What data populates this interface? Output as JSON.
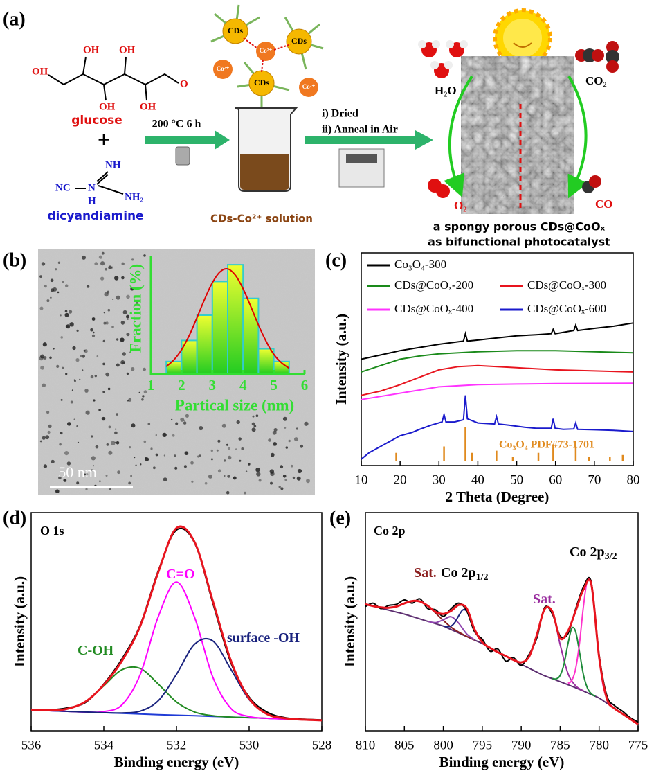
{
  "panel_labels": [
    "(a)",
    "(b)",
    "(c)",
    "(d)",
    "(e)"
  ],
  "scheme": {
    "glucose_atoms": [
      "OH",
      "OH",
      "OH",
      "OH",
      "OH",
      "O"
    ],
    "glucose": "glucose",
    "plus": "+",
    "dicyandiamine_atoms": [
      "NH",
      "NC",
      "N",
      "H",
      "NH₂"
    ],
    "dicyandiamine": "dicyandiamine",
    "step1": "200 °C 6 h",
    "cds": [
      "CDs",
      "CDs",
      "CDs"
    ],
    "ions": [
      "Co²⁺",
      "Co²⁺",
      "Co²⁺"
    ],
    "solution": "CDs-Co²⁺ solution",
    "step2": [
      "i) Dried",
      "ii) Anneal in Air"
    ],
    "molecules": [
      "H₂O",
      "CO₂",
      "O₂",
      "CO"
    ],
    "caption": [
      "a spongy porous CDs@CoOₓ",
      "as bifunctional photocatalyst"
    ]
  },
  "tem": {
    "scale_bar": "50 nm"
  },
  "chart_data": [
    {
      "type": "histogram",
      "xlabel": "Partical size (nm)",
      "ylabel": "Fraction (%)",
      "bins": [
        1.5,
        2,
        2.5,
        3,
        3.5,
        4,
        4.5,
        5,
        5.5
      ],
      "values": [
        3,
        8,
        14,
        22,
        26,
        18,
        6,
        3
      ],
      "color": "#ccff00",
      "edge_color": "#33cccc",
      "label_color": "#33dd33",
      "xlim": [
        1,
        6
      ],
      "xticks": [
        1,
        2,
        3,
        4,
        5,
        6
      ],
      "ylim": [
        0,
        28
      ],
      "fit": {
        "color": "#e00000",
        "x": [
          1.5,
          1.75,
          2,
          2.25,
          2.5,
          2.75,
          3,
          3.25,
          3.5,
          3.75,
          4,
          4.25,
          4.5,
          4.75,
          5,
          5.25,
          5.5
        ],
        "values": [
          1.8,
          3.4,
          5.8,
          9.2,
          13.4,
          17.8,
          21.7,
          24.3,
          25.0,
          23.5,
          20.3,
          16.1,
          11.7,
          7.8,
          4.7,
          2.7,
          1.4
        ]
      }
    },
    {
      "type": "line",
      "xlabel": "2 Theta (Degree)",
      "ylabel": "Intensity (a.u.)",
      "xlim": [
        10,
        80
      ],
      "xticks": [
        10,
        20,
        30,
        40,
        50,
        60,
        70,
        80
      ],
      "ylim": [
        0,
        100
      ],
      "series": [
        {
          "name": "Co₃O₄-300",
          "color": "#000000",
          "x": [
            10,
            15,
            20,
            25,
            30,
            36.3,
            36.8,
            37.3,
            40,
            45,
            50,
            55,
            58.9,
            59.4,
            59.9,
            64.7,
            65.2,
            65.7,
            70,
            75,
            80
          ],
          "values": [
            50,
            52,
            54,
            55.5,
            57,
            58.5,
            62,
            58.5,
            59,
            60,
            61,
            61.5,
            62,
            64,
            62,
            63.5,
            66,
            63.5,
            64.5,
            65.5,
            67
          ]
        },
        {
          "name": "CDs@CoOₓ-200",
          "color": "#1a8a1a",
          "x": [
            10,
            15,
            20,
            25,
            30,
            40,
            50,
            60,
            70,
            80
          ],
          "values": [
            44,
            47,
            50,
            51.5,
            52.5,
            53.5,
            54,
            54,
            53.5,
            53
          ]
        },
        {
          "name": "CDs@CoOₓ-300",
          "color": "#e8141e",
          "x": [
            10,
            15,
            20,
            25,
            30,
            35,
            40,
            50,
            60,
            70,
            80
          ],
          "values": [
            33,
            35,
            38,
            41.5,
            45,
            46.5,
            47,
            46,
            45,
            44.5,
            44
          ]
        },
        {
          "name": "CDs@CoOₓ-400",
          "color": "#ff33ff",
          "x": [
            10,
            15,
            20,
            25,
            30,
            40,
            50,
            60,
            70,
            80
          ],
          "values": [
            31,
            32.5,
            34,
            35.5,
            37,
            38,
            38.3,
            38.5,
            38.6,
            38.7
          ]
        },
        {
          "name": "CDs@CoOₓ-600",
          "color": "#1a1acc",
          "x": [
            10,
            12,
            15,
            18,
            20,
            23,
            25,
            28,
            30.8,
            31.3,
            31.8,
            34,
            36.3,
            36.8,
            37.3,
            40,
            44.3,
            44.8,
            45.3,
            48,
            52,
            55,
            58.9,
            59.4,
            59.9,
            62,
            64.7,
            65.2,
            65.7,
            70,
            75,
            80
          ],
          "values": [
            3,
            6,
            9,
            12,
            14,
            15.5,
            17,
            19,
            20.5,
            24,
            20.5,
            20.5,
            21.5,
            33,
            22,
            20,
            19.5,
            23,
            19.5,
            19,
            18,
            17.5,
            17.5,
            22,
            17.5,
            17,
            17.2,
            20,
            17,
            16.8,
            16.5,
            16
          ]
        }
      ],
      "reference": {
        "name": "Co₃O₄ PDF#73-1701",
        "color": "#e08a1e",
        "x": [
          19,
          31.3,
          36.8,
          38.5,
          44.8,
          49,
          55.6,
          59.4,
          65.2,
          68.6,
          74,
          77.3
        ],
        "values": [
          4,
          7,
          16,
          4,
          5,
          2,
          4,
          8,
          7,
          2,
          2,
          3
        ]
      }
    },
    {
      "type": "line",
      "title": "O 1s",
      "xlabel": "Binding energy (eV)",
      "ylabel": "Intensity (a.u.)",
      "xlim": [
        536,
        528
      ],
      "xticks": [
        536,
        534,
        532,
        530,
        528
      ],
      "ylim": [
        0,
        100
      ],
      "smooth": true,
      "series": [
        {
          "color": "#1f3bd6",
          "x": [
            536,
            535.5,
            535,
            534.5,
            534,
            533.5,
            533,
            532.5,
            532,
            531.5,
            531,
            530.5,
            530,
            529.5,
            529,
            528.5,
            528
          ],
          "values": [
            9.5,
            9.2,
            8.9,
            8.6,
            8.3,
            8.0,
            7.7,
            7.4,
            7.15,
            6.9,
            6.6,
            6.3,
            6.0,
            5.7,
            5.4,
            5.1,
            4.8
          ]
        },
        {
          "color": "#228b22",
          "x": [
            536,
            535.5,
            535,
            534.5,
            534,
            533.5,
            533,
            532.5,
            532,
            531.5,
            531,
            530.5,
            530,
            529.5,
            529,
            528.5,
            528
          ],
          "values": [
            9.5,
            9.4,
            10.1,
            13.4,
            20.6,
            28.0,
            28.6,
            21.4,
            13.2,
            8.6,
            6.9,
            6.3,
            6.0,
            5.7,
            5.4,
            5.1,
            4.8
          ]
        },
        {
          "color": "#ff00ff",
          "x": [
            536,
            535.5,
            535,
            534.5,
            534,
            533.5,
            533,
            532.5,
            532,
            531.5,
            531,
            530.5,
            530,
            529.5,
            529,
            528.5,
            528
          ],
          "values": [
            9.5,
            9.2,
            8.9,
            8.6,
            8.8,
            11.9,
            25.7,
            52.4,
            68.2,
            51.9,
            24.6,
            10.2,
            6.5,
            5.7,
            5.4,
            5.1,
            4.8
          ]
        },
        {
          "color": "#1a237e",
          "x": [
            536,
            535.5,
            535,
            534.5,
            534,
            533.5,
            533,
            532.5,
            532,
            531.5,
            531,
            530.5,
            530,
            529.5,
            529,
            528.5,
            528
          ],
          "values": [
            9.5,
            9.2,
            8.9,
            8.6,
            8.3,
            8.2,
            9.0,
            13.8,
            25.9,
            39.7,
            41.2,
            28.1,
            14.3,
            7.6,
            5.7,
            5.1,
            4.8
          ]
        },
        {
          "color": "#000000",
          "x": [
            536,
            535.5,
            535,
            534.5,
            534,
            533.5,
            533,
            532.5,
            532,
            531.5,
            531,
            530.5,
            530,
            529.5,
            529,
            528.5,
            528
          ],
          "values": [
            9.8,
            9.6,
            10.5,
            13.0,
            21.5,
            33.0,
            48.5,
            73.5,
            92.0,
            86.0,
            58.5,
            31.0,
            15.5,
            8.5,
            6.0,
            5.3,
            5.0
          ]
        },
        {
          "color": "#e8141e",
          "x": [
            536,
            535.5,
            535,
            534.5,
            534,
            533.5,
            533,
            532.5,
            532,
            531.5,
            531,
            530.5,
            530,
            529.5,
            529,
            528.5,
            528
          ],
          "values": [
            9.5,
            9.4,
            10.1,
            13.4,
            21.1,
            32.1,
            47.9,
            72.8,
            92.9,
            86.4,
            59.5,
            32.0,
            14.8,
            7.6,
            5.7,
            5.1,
            4.8
          ]
        }
      ],
      "annotations": [
        {
          "text": "C-OH",
          "color": "#228b22"
        },
        {
          "text": "C=O",
          "color": "#ff00ff"
        },
        {
          "text": "surface -OH",
          "color": "#1a237e"
        }
      ]
    },
    {
      "type": "line",
      "title": "Co 2p",
      "xlabel": "Binding energy (eV)",
      "ylabel": "Intensity (a.u.)",
      "xlim": [
        810,
        775
      ],
      "xticks": [
        810,
        805,
        800,
        795,
        790,
        785,
        780,
        775
      ],
      "ylim": [
        0,
        100
      ],
      "smooth": true,
      "series": [
        {
          "color": "#5b2c6f",
          "x": [
            810,
            809,
            808,
            807,
            806,
            805,
            804,
            803,
            802,
            801,
            800,
            799,
            798,
            797,
            796,
            795,
            794,
            793,
            792,
            791,
            790,
            789,
            788,
            787,
            786,
            785,
            784,
            783,
            782,
            781,
            780,
            779,
            778,
            777,
            776,
            775
          ],
          "values": [
            58,
            57.1,
            56.2,
            55.3,
            54.4,
            53.5,
            52.4,
            51.3,
            50.2,
            49.1,
            48,
            46.4,
            44.8,
            43.2,
            41.6,
            40,
            38,
            36,
            34.3,
            32.4,
            30.5,
            28.7,
            26.9,
            25.2,
            23.9,
            22.5,
            21.1,
            19.7,
            18.2,
            16.6,
            15,
            12.6,
            10.2,
            7.8,
            5.4,
            3
          ]
        },
        {
          "color": "#8b1e1e",
          "x": [
            810,
            809,
            808,
            807,
            806,
            805,
            804,
            803,
            802,
            801,
            800,
            799,
            798,
            797,
            796
          ],
          "values": [
            58,
            57.2,
            56.6,
            56.4,
            57.0,
            58.4,
            59.5,
            59.3,
            57.3,
            54.0,
            50.6,
            47.5,
            45.2,
            43.3,
            41.6
          ]
        },
        {
          "color": "#8e44ad",
          "x": [
            802,
            801,
            800,
            799,
            798,
            797,
            796
          ],
          "values": [
            50.2,
            49.6,
            50.9,
            52.3,
            49.2,
            44.4,
            41.7
          ]
        },
        {
          "color": "#1a237e",
          "x": [
            800,
            799.5,
            799,
            798.5,
            798,
            797.5,
            797,
            796.5,
            796,
            795.5,
            795,
            794.5
          ],
          "values": [
            48.1,
            47.7,
            48.0,
            49.8,
            52.9,
            55.4,
            54.9,
            51.3,
            46.5,
            42.8,
            40.6,
            39.1
          ]
        },
        {
          "color": "#9b30a0",
          "x": [
            791,
            790,
            789,
            788,
            787,
            786,
            785,
            784,
            783,
            782
          ],
          "values": [
            32.5,
            31.4,
            33.9,
            43.9,
            55.8,
            54.5,
            39.5,
            26.3,
            20.6,
            18.3
          ]
        },
        {
          "color": "#1e8b3a",
          "x": [
            786,
            785.5,
            785,
            784.5,
            784,
            783.5,
            783,
            782.5,
            782,
            781.5,
            781,
            780.5
          ],
          "values": [
            24.0,
            23.8,
            25.4,
            30.7,
            39.9,
            47.0,
            45.3,
            35.7,
            25.5,
            19.6,
            17.0,
            15.8
          ]
        },
        {
          "color": "#ff33cc",
          "x": [
            784,
            783.5,
            783,
            782.5,
            782,
            781.5,
            781,
            780.5,
            780,
            779.5,
            779,
            778.5,
            778
          ],
          "values": [
            21.7,
            23.1,
            28.6,
            40.8,
            57.4,
            69.1,
            66.7,
            51.5,
            33.7,
            21.0,
            14.6,
            11.8,
            10.2
          ]
        },
        {
          "color": "#000000",
          "x": [
            810,
            809,
            808,
            807,
            806,
            805,
            804,
            803,
            802,
            801,
            800,
            799,
            798,
            797,
            796,
            795,
            794,
            793,
            792,
            791,
            790,
            789,
            788,
            787,
            786,
            785,
            784,
            783,
            782,
            781,
            780,
            779,
            778,
            777,
            776,
            775
          ],
          "values": [
            57,
            58.5,
            56,
            57.5,
            58,
            60,
            58.5,
            60.5,
            56,
            55.5,
            52.5,
            56,
            58.5,
            55,
            45.5,
            42,
            36.5,
            37.5,
            32,
            33.5,
            30,
            35,
            42.5,
            56.5,
            53.5,
            43.5,
            44.5,
            56,
            66,
            68,
            35,
            16,
            11.5,
            9,
            6,
            4
          ]
        },
        {
          "color": "#e8141e",
          "x": [
            810,
            809,
            808,
            807,
            806,
            805,
            804,
            803,
            802,
            801,
            800,
            799,
            798,
            797,
            796,
            795,
            794,
            793,
            792,
            791,
            790,
            789,
            788,
            787,
            786,
            785,
            784,
            783,
            782,
            781,
            780,
            779,
            778,
            777,
            776,
            775
          ],
          "values": [
            58,
            57.2,
            56.6,
            56.4,
            57.0,
            58.4,
            59.5,
            59.3,
            57.3,
            54.5,
            53.6,
            55.0,
            57.7,
            56.2,
            46.6,
            40.6,
            38,
            36,
            34.3,
            32.5,
            31.4,
            33.9,
            43.9,
            55.8,
            54.6,
            42.4,
            45.7,
            55.1,
            64.8,
            67.1,
            33.7,
            14.6,
            10.2,
            7.8,
            5.4,
            3
          ]
        }
      ],
      "annotations": [
        {
          "text": "Sat.",
          "color": "#8b1e1e"
        },
        {
          "text": "Co 2p",
          "sub": "1/2",
          "color": "#000000"
        },
        {
          "text": "Sat.",
          "color": "#9b30a0"
        },
        {
          "text": "Co 2p",
          "sub": "3/2",
          "color": "#000000"
        }
      ]
    }
  ]
}
